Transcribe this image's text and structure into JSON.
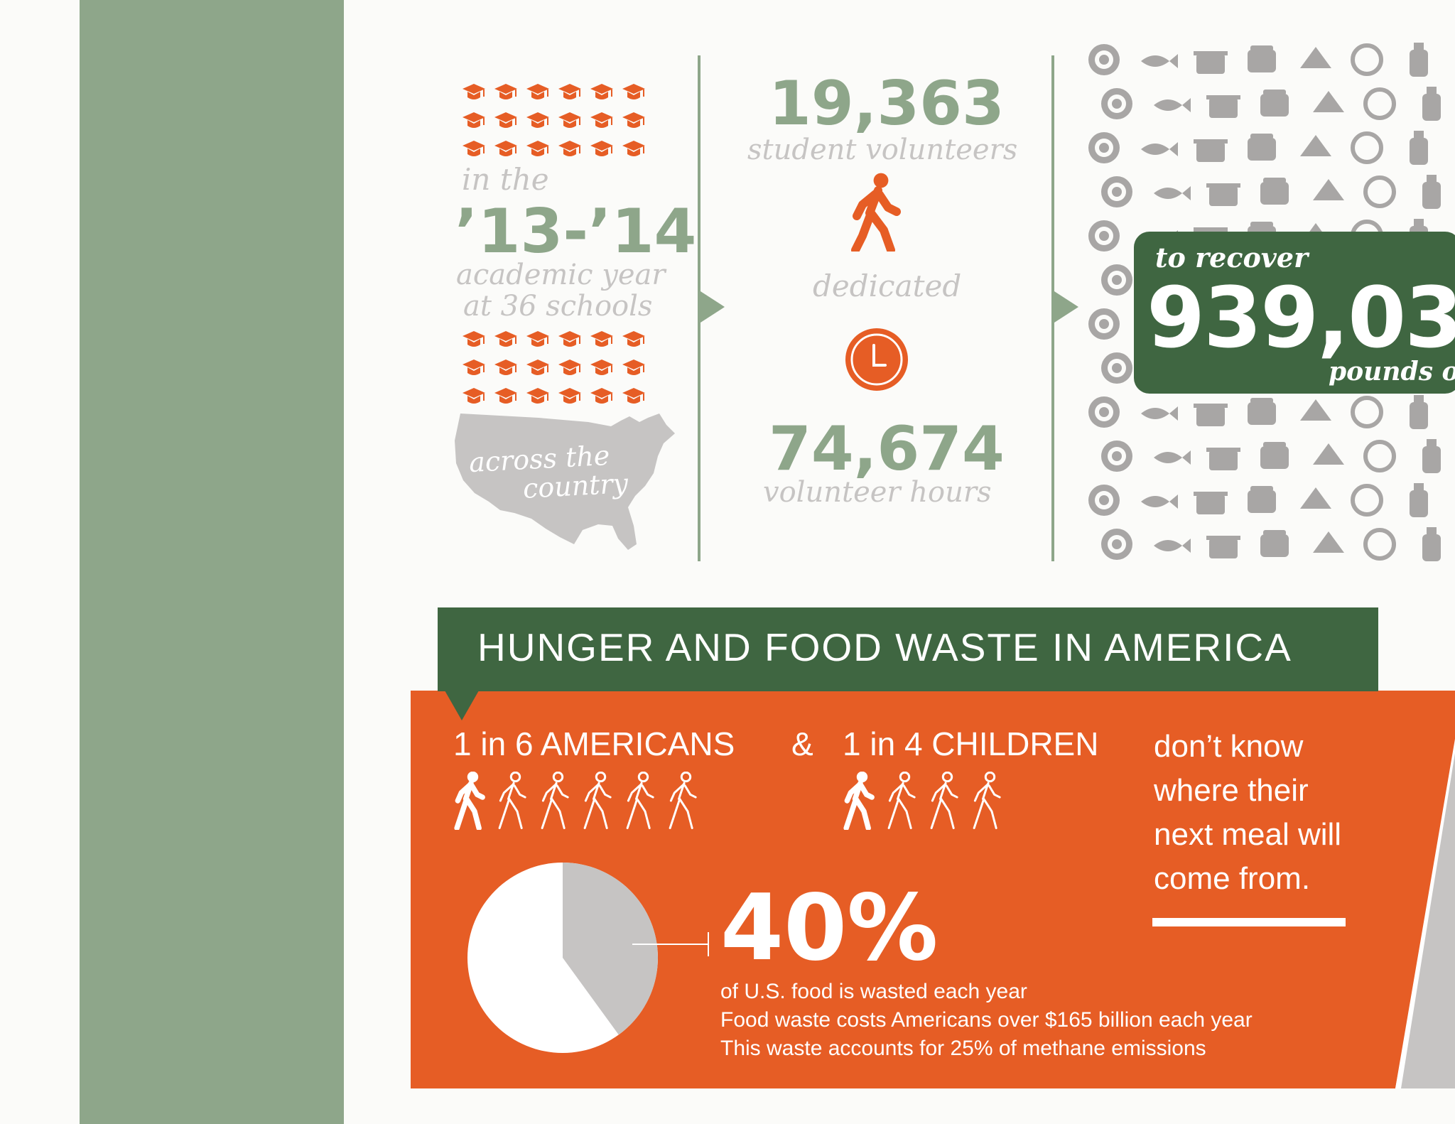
{
  "colors": {
    "sage": "#8ea68a",
    "forest": "#3f6641",
    "orange": "#e65d25",
    "grey": "#c6c4c3",
    "food_grey": "#a8a6a5"
  },
  "schools": {
    "line1": "in the",
    "year": "’13-’14",
    "line3": "academic year",
    "line4": "at 36 schools",
    "map_label_1": "across the",
    "map_label_2": "country"
  },
  "volunteers": {
    "count": "19,363",
    "count_label": "student volunteers",
    "dedicated": "dedicated",
    "hours": "74,674",
    "hours_label": "volunteer hours"
  },
  "recovery": {
    "label": "to recover",
    "number": "939,03",
    "unit": "pounds of"
  },
  "hunger": {
    "title": "HUNGER AND FOOD WASTE IN AMERICA",
    "americans": "1 in 6 AMERICANS",
    "amp": "&",
    "children": "1 in 4 CHILDREN",
    "meal_lines": [
      "don’t know",
      "where their",
      "next meal will",
      "come from."
    ],
    "percent_text": "40%",
    "percent_value": 40,
    "facts": [
      "of U.S. food is wasted each year",
      "Food waste costs Americans over $165 billion each year",
      "This waste accounts for 25% of methane emissions"
    ]
  },
  "icons": {
    "cap": "graduation-cap-icon",
    "walker": "walking-person-icon",
    "clock": "clock-icon",
    "map": "usa-map-icon"
  }
}
